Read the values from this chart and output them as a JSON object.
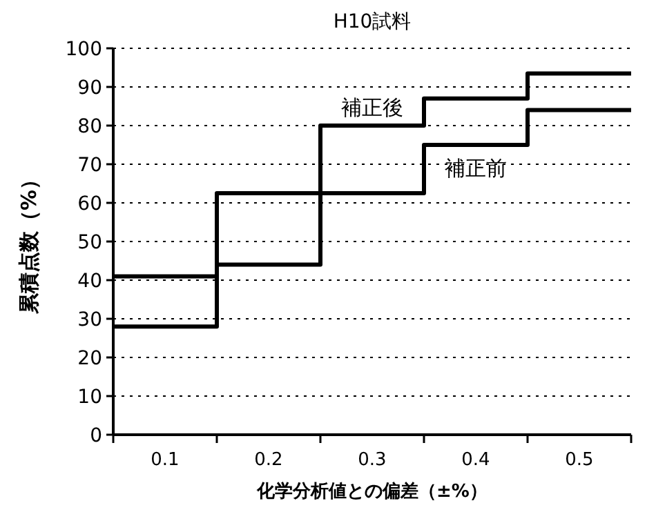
{
  "chart_data": {
    "type": "step",
    "title": "H10試料",
    "xlabel": "化学分析値との偏差（±%）",
    "ylabel": "累積点数（%）",
    "categories": [
      "0.1",
      "0.2",
      "0.3",
      "0.4",
      "0.5"
    ],
    "series": [
      {
        "name": "補正後",
        "color": "#000000",
        "values": [
          41,
          44,
          80,
          87,
          93.5
        ]
      },
      {
        "name": "補正前",
        "color": "#000000",
        "values": [
          28,
          62.5,
          62.5,
          75,
          84
        ]
      }
    ],
    "ylim": [
      0,
      100
    ],
    "yticks": [
      0,
      10,
      20,
      30,
      40,
      50,
      60,
      70,
      80,
      90,
      100
    ],
    "grid": "y",
    "legend": false
  }
}
